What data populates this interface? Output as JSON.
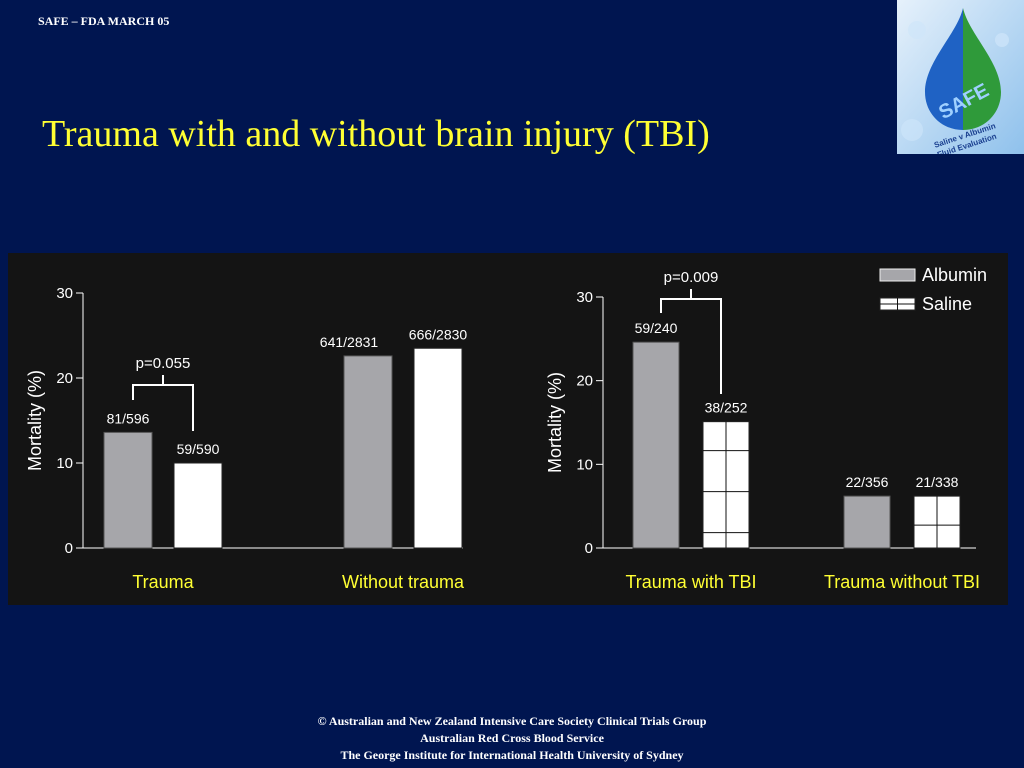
{
  "header": {
    "label": "SAFE – FDA MARCH 05"
  },
  "slide": {
    "title": "Trauma with and without brain injury (TBI)"
  },
  "logo": {
    "text": "SAFE",
    "subtitle_line1": "Saline v Albumin",
    "subtitle_line2": "Fluid Evaluation"
  },
  "colors": {
    "background": "#001550",
    "title": "#ffff33",
    "panel": "#141414",
    "albumin": "#a6a6aa",
    "saline": "#ffffff",
    "category_label": "#ffff33"
  },
  "chart_data": [
    {
      "type": "bar",
      "ylabel": "Mortality (%)",
      "ylim": [
        0,
        30
      ],
      "yticks": [
        "0",
        "10",
        "20",
        "30"
      ],
      "categories": [
        "Trauma",
        "Without trauma"
      ],
      "series": [
        {
          "values": [
            13.6,
            22.6
          ],
          "labels": [
            "81/596",
            "641/2831"
          ]
        },
        {
          "values": [
            10.0,
            23.5
          ],
          "labels": [
            "59/590",
            "666/2830"
          ]
        }
      ],
      "annotations": [
        {
          "text": "p=0.055",
          "category": 0
        }
      ]
    },
    {
      "type": "bar",
      "ylabel": "Mortality (%)",
      "ylim": [
        0,
        30
      ],
      "yticks": [
        "0",
        "10",
        "20",
        "30"
      ],
      "categories": [
        "Trauma with TBI",
        "Trauma without TBI"
      ],
      "legend": {
        "position": "top-right",
        "entries": [
          "Albumin",
          "Saline"
        ]
      },
      "series": [
        {
          "name": "Albumin",
          "values": [
            24.6,
            6.2
          ],
          "labels": [
            "59/240",
            "22/356"
          ]
        },
        {
          "name": "Saline",
          "values": [
            15.1,
            6.2
          ],
          "labels": [
            "38/252",
            "21/338"
          ]
        }
      ],
      "annotations": [
        {
          "text": "p=0.009",
          "category": 0
        }
      ]
    }
  ],
  "footer": {
    "line1": "© Australian and New Zealand Intensive Care Society Clinical Trials Group",
    "line2": "Australian Red Cross Blood Service",
    "line3": "The George Institute for International Health University of Sydney"
  }
}
